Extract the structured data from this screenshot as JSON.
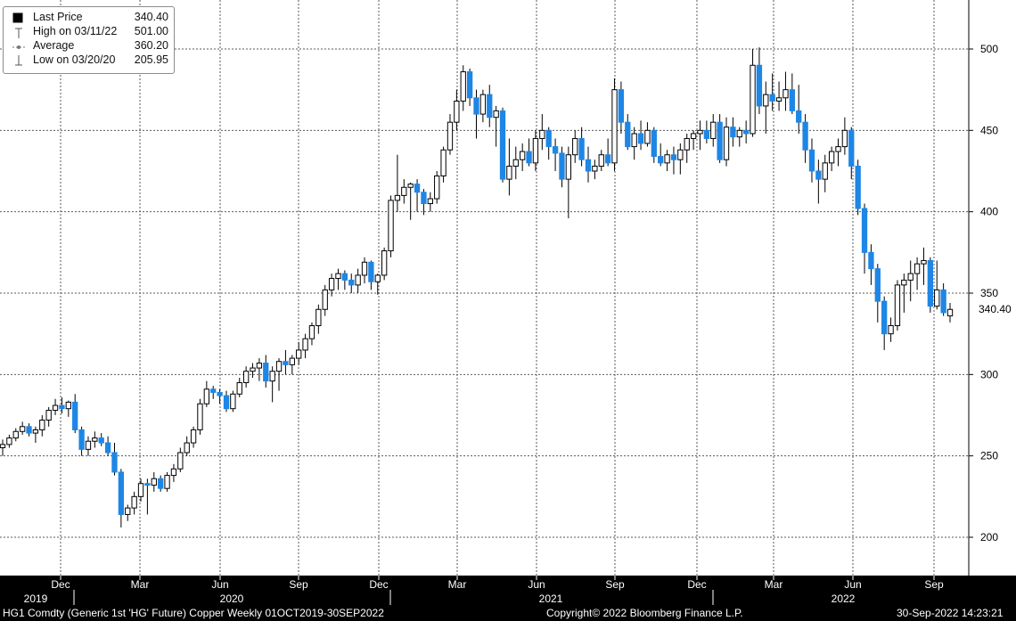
{
  "legend": {
    "last_label": "Last Price",
    "last_value": "340.40",
    "high_label": "High on 03/11/22",
    "high_value": "501.00",
    "avg_label": "Average",
    "avg_value": "360.20",
    "low_label": "Low on 03/20/20",
    "low_value": "205.95"
  },
  "footer": {
    "left": "HG1 Comdty (Generic 1st 'HG' Future) Copper  Weekly 01OCT2019-30SEP2022",
    "center": "Copyright© 2022 Bloomberg Finance L.P.",
    "right": "30-Sep-2022 14:23:21"
  },
  "colors": {
    "up": "#ffffff",
    "down": "#1e86e5",
    "grid": "#5a5a5a",
    "axis_band": "#000000"
  },
  "chart_data": {
    "type": "candlestick",
    "frequency": "weekly",
    "ylim": [
      180,
      520
    ],
    "y_ticks": [
      200,
      250,
      300,
      350,
      400,
      450,
      500
    ],
    "last_price_label": "340.40",
    "month_ticks": [
      "Dec",
      "Mar",
      "Jun",
      "Sep",
      "Dec",
      "Mar",
      "Jun",
      "Sep",
      "Dec",
      "Mar",
      "Jun",
      "Sep"
    ],
    "year_labels": [
      "2019",
      "2020",
      "2021",
      "2022"
    ],
    "grid": true,
    "legend_position": "top-left",
    "candles": [
      [
        255,
        260,
        250,
        257
      ],
      [
        257,
        263,
        255,
        261
      ],
      [
        261,
        267,
        259,
        265
      ],
      [
        265,
        271,
        263,
        268
      ],
      [
        268,
        270,
        262,
        264
      ],
      [
        264,
        268,
        258,
        266
      ],
      [
        266,
        275,
        262,
        272
      ],
      [
        272,
        280,
        268,
        278
      ],
      [
        278,
        285,
        275,
        281
      ],
      [
        281,
        286,
        276,
        279
      ],
      [
        279,
        284,
        274,
        283
      ],
      [
        283,
        288,
        264,
        266
      ],
      [
        266,
        268,
        250,
        254
      ],
      [
        254,
        262,
        250,
        259
      ],
      [
        259,
        265,
        255,
        261
      ],
      [
        261,
        264,
        256,
        258
      ],
      [
        258,
        262,
        250,
        252
      ],
      [
        252,
        258,
        238,
        240
      ],
      [
        240,
        242,
        206,
        214
      ],
      [
        214,
        220,
        210,
        218
      ],
      [
        218,
        228,
        214,
        225
      ],
      [
        225,
        236,
        222,
        233
      ],
      [
        233,
        236,
        214,
        232
      ],
      [
        232,
        240,
        228,
        236
      ],
      [
        236,
        238,
        228,
        230
      ],
      [
        230,
        240,
        228,
        238
      ],
      [
        238,
        245,
        234,
        242
      ],
      [
        242,
        255,
        240,
        252
      ],
      [
        252,
        262,
        250,
        258
      ],
      [
        258,
        268,
        255,
        266
      ],
      [
        266,
        285,
        263,
        282
      ],
      [
        282,
        296,
        280,
        291
      ],
      [
        291,
        293,
        285,
        289
      ],
      [
        289,
        291,
        282,
        287
      ],
      [
        287,
        290,
        277,
        279
      ],
      [
        279,
        290,
        277,
        288
      ],
      [
        288,
        298,
        286,
        295
      ],
      [
        295,
        305,
        292,
        302
      ],
      [
        302,
        307,
        298,
        304
      ],
      [
        304,
        310,
        296,
        307
      ],
      [
        307,
        312,
        292,
        296
      ],
      [
        296,
        305,
        283,
        302
      ],
      [
        302,
        310,
        290,
        308
      ],
      [
        308,
        315,
        300,
        306
      ],
      [
        306,
        312,
        300,
        310
      ],
      [
        310,
        320,
        306,
        315
      ],
      [
        315,
        325,
        310,
        322
      ],
      [
        322,
        332,
        318,
        330
      ],
      [
        330,
        343,
        325,
        340
      ],
      [
        340,
        355,
        336,
        352
      ],
      [
        352,
        362,
        348,
        359
      ],
      [
        359,
        365,
        352,
        362
      ],
      [
        362,
        364,
        352,
        358
      ],
      [
        358,
        362,
        350,
        355
      ],
      [
        355,
        365,
        350,
        361
      ],
      [
        361,
        372,
        356,
        369
      ],
      [
        369,
        370,
        352,
        357
      ],
      [
        357,
        362,
        349,
        361
      ],
      [
        361,
        378,
        358,
        376
      ],
      [
        376,
        410,
        372,
        407
      ],
      [
        407,
        435,
        400,
        410
      ],
      [
        410,
        420,
        405,
        415
      ],
      [
        415,
        418,
        395,
        417
      ],
      [
        417,
        420,
        400,
        412
      ],
      [
        412,
        414,
        398,
        405
      ],
      [
        405,
        412,
        400,
        408
      ],
      [
        408,
        425,
        405,
        422
      ],
      [
        422,
        440,
        418,
        438
      ],
      [
        438,
        460,
        435,
        455
      ],
      [
        455,
        475,
        450,
        468
      ],
      [
        468,
        490,
        462,
        486
      ],
      [
        486,
        488,
        465,
        470
      ],
      [
        470,
        475,
        445,
        460
      ],
      [
        460,
        475,
        455,
        472
      ],
      [
        472,
        478,
        452,
        458
      ],
      [
        458,
        465,
        440,
        462
      ],
      [
        462,
        464,
        418,
        420
      ],
      [
        420,
        445,
        410,
        428
      ],
      [
        428,
        440,
        420,
        432
      ],
      [
        432,
        442,
        425,
        437
      ],
      [
        437,
        445,
        428,
        430
      ],
      [
        430,
        450,
        425,
        445
      ],
      [
        445,
        460,
        438,
        450
      ],
      [
        450,
        452,
        432,
        440
      ],
      [
        440,
        445,
        425,
        436
      ],
      [
        436,
        440,
        415,
        420
      ],
      [
        420,
        440,
        396,
        435
      ],
      [
        435,
        450,
        430,
        445
      ],
      [
        445,
        452,
        428,
        432
      ],
      [
        432,
        440,
        418,
        425
      ],
      [
        425,
        432,
        420,
        428
      ],
      [
        428,
        438,
        425,
        435
      ],
      [
        435,
        445,
        428,
        430
      ],
      [
        430,
        482,
        425,
        475
      ],
      [
        475,
        480,
        448,
        455
      ],
      [
        455,
        460,
        438,
        440
      ],
      [
        440,
        452,
        432,
        448
      ],
      [
        448,
        456,
        438,
        442
      ],
      [
        442,
        455,
        440,
        450
      ],
      [
        450,
        452,
        430,
        434
      ],
      [
        434,
        442,
        428,
        430
      ],
      [
        430,
        438,
        425,
        435
      ],
      [
        435,
        440,
        423,
        432
      ],
      [
        432,
        442,
        423,
        438
      ],
      [
        438,
        448,
        430,
        445
      ],
      [
        445,
        450,
        438,
        448
      ],
      [
        448,
        456,
        438,
        450
      ],
      [
        450,
        456,
        442,
        445
      ],
      [
        445,
        460,
        440,
        455
      ],
      [
        455,
        460,
        430,
        432
      ],
      [
        432,
        458,
        428,
        452
      ],
      [
        452,
        458,
        440,
        446
      ],
      [
        446,
        452,
        440,
        450
      ],
      [
        450,
        456,
        442,
        448
      ],
      [
        448,
        500,
        446,
        490
      ],
      [
        490,
        501,
        460,
        465
      ],
      [
        465,
        480,
        448,
        472
      ],
      [
        472,
        485,
        462,
        468
      ],
      [
        468,
        480,
        462,
        470
      ],
      [
        470,
        486,
        462,
        475
      ],
      [
        475,
        485,
        460,
        462
      ],
      [
        462,
        478,
        448,
        455
      ],
      [
        455,
        460,
        430,
        438
      ],
      [
        438,
        445,
        418,
        425
      ],
      [
        425,
        432,
        405,
        420
      ],
      [
        420,
        435,
        412,
        430
      ],
      [
        430,
        440,
        425,
        437
      ],
      [
        437,
        445,
        428,
        440
      ],
      [
        440,
        458,
        435,
        450
      ],
      [
        450,
        452,
        420,
        428
      ],
      [
        428,
        432,
        398,
        402
      ],
      [
        402,
        405,
        362,
        375
      ],
      [
        375,
        380,
        355,
        365
      ],
      [
        365,
        368,
        332,
        345
      ],
      [
        345,
        348,
        315,
        325
      ],
      [
        325,
        335,
        320,
        330
      ],
      [
        330,
        358,
        327,
        355
      ],
      [
        355,
        362,
        338,
        358
      ],
      [
        358,
        370,
        345,
        362
      ],
      [
        362,
        372,
        352,
        368
      ],
      [
        368,
        378,
        355,
        370
      ],
      [
        370,
        372,
        338,
        342
      ],
      [
        342,
        370,
        340,
        352
      ],
      [
        352,
        356,
        336,
        338
      ],
      [
        336,
        344,
        332,
        340
      ]
    ]
  }
}
